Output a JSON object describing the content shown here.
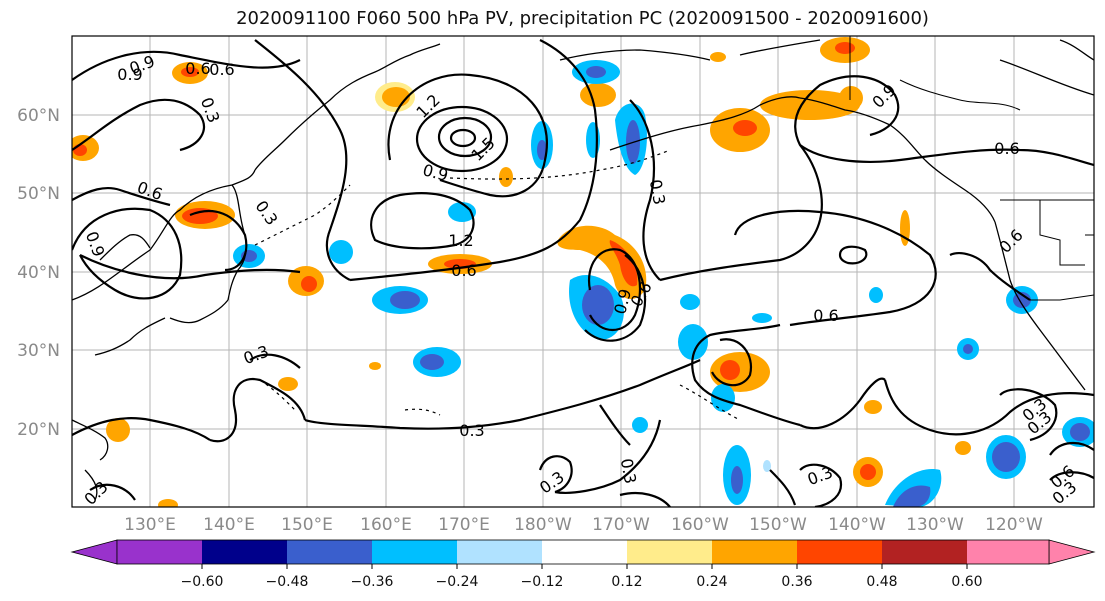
{
  "title": "2020091100 F060 500 hPa PV, precipitation PC (2020091500 - 2020091600)",
  "lat_labels": [
    "60°N",
    "50°N",
    "40°N",
    "30°N",
    "20°N"
  ],
  "lon_labels": [
    "130°E",
    "140°E",
    "150°E",
    "160°E",
    "170°E",
    "180°W",
    "170°W",
    "160°W",
    "150°W",
    "140°W",
    "130°W",
    "120°W"
  ],
  "colorbar": {
    "levels": [
      "−0.60",
      "−0.48",
      "−0.36",
      "−0.24",
      "−0.12",
      "0.12",
      "0.24",
      "0.36",
      "0.48",
      "0.60"
    ],
    "colors": [
      "#9932cc",
      "#00008b",
      "#3a5fcd",
      "#00bfff",
      "#b0e2ff",
      "#ffffff",
      "#ffec8b",
      "#ffa500",
      "#ff4500",
      "#b22222",
      "#ff82ab"
    ]
  },
  "contour_labels": [
    "0.9",
    "0.6",
    "0.3",
    "1.2",
    "1.5",
    "0.9",
    "0.6",
    "0.3",
    "0.6",
    "0.9",
    "1.2",
    "0.6",
    "0.9",
    "0.6",
    "0.3",
    "0.9",
    "0.6",
    "0.6",
    "0.3",
    "0.3",
    "0.3",
    "0.3",
    "0.3",
    "0.3",
    "0.3",
    "0.6",
    "0.3",
    "0.3",
    "0.9",
    "0.6"
  ]
}
